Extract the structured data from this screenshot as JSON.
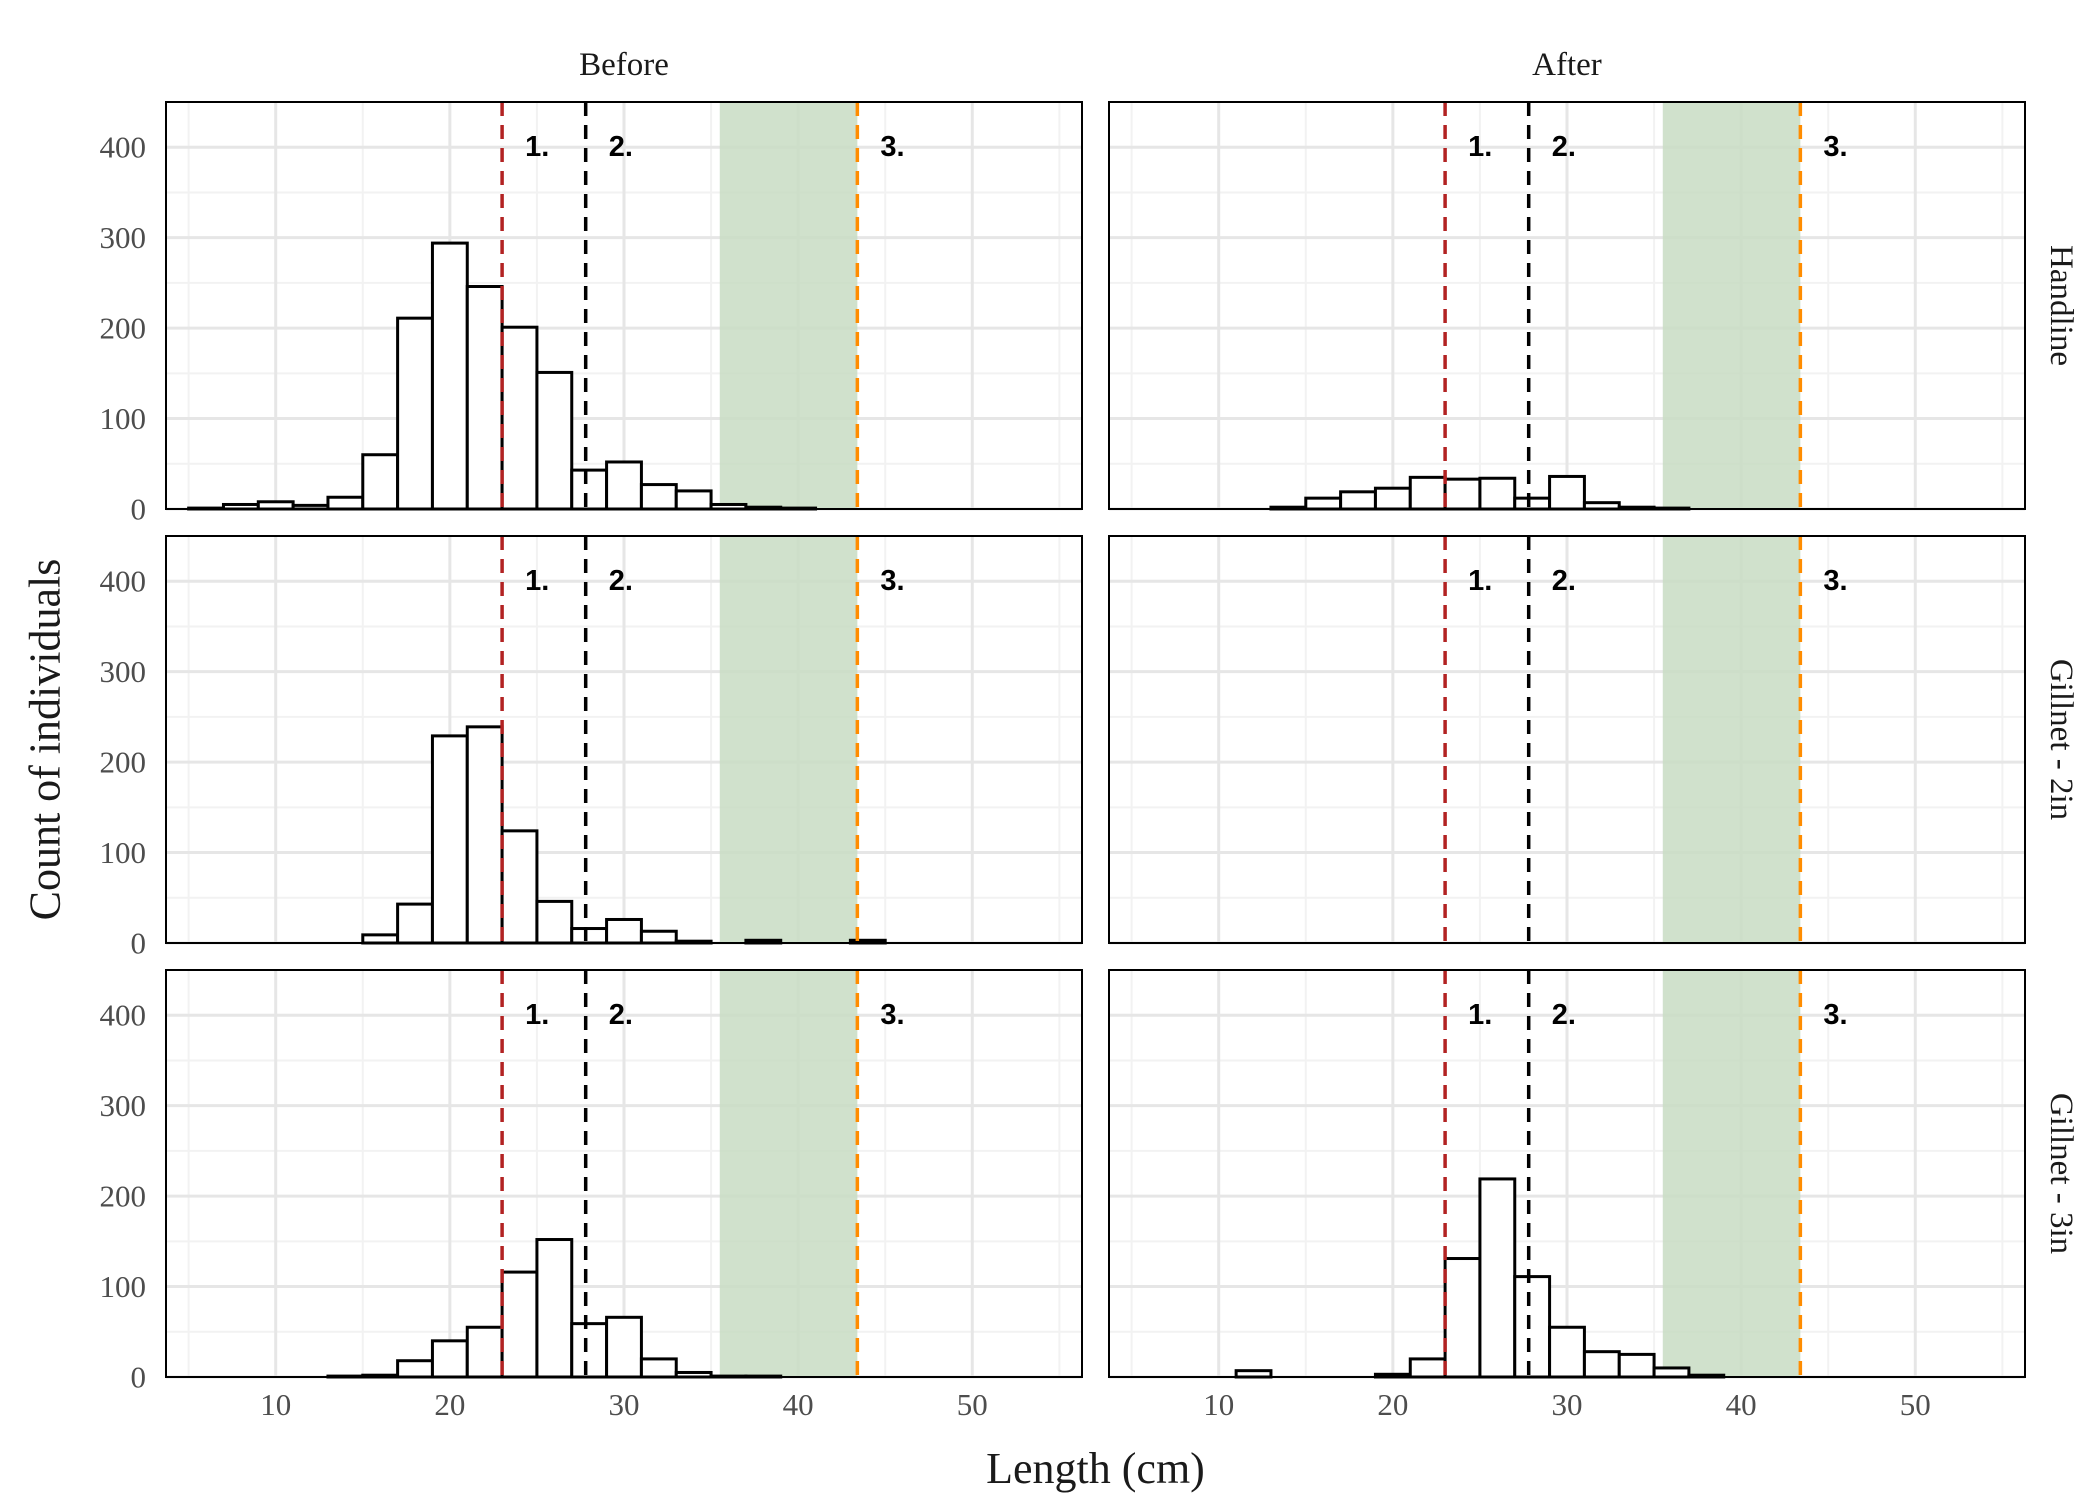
{
  "chart_data": {
    "type": "bar",
    "subtype": "faceted-histogram",
    "xlabel": "Length (cm)",
    "ylabel": "Count of individuals",
    "xlim": [
      3.7,
      56.3
    ],
    "ylim": [
      0,
      450
    ],
    "xticks": [
      10,
      20,
      30,
      40,
      50
    ],
    "yticks": [
      0,
      100,
      200,
      300,
      400
    ],
    "grid": true,
    "bin_width": 2,
    "columns": [
      "Before",
      "After"
    ],
    "rows": [
      "Handline",
      "Gillnet - 2in",
      "Gillnet - 3in"
    ],
    "reference_lines": [
      {
        "label": "1.",
        "x": 23,
        "color": "#b22222"
      },
      {
        "label": "2.",
        "x": 27.8,
        "color": "#000000"
      },
      {
        "label": "3.",
        "x": 43.4,
        "color": "#ff8c00"
      }
    ],
    "shaded_band": {
      "x_start": 35.5,
      "x_end": 43.4,
      "color": "#c8dcc3"
    },
    "annotation_y": 400,
    "panels": [
      {
        "row": "Handline",
        "col": "Before",
        "x": [
          6,
          8,
          10,
          12,
          14,
          16,
          18,
          20,
          22,
          24,
          26,
          28,
          30,
          32,
          34,
          36,
          38,
          40
        ],
        "values": [
          1,
          5,
          8,
          4,
          13,
          60,
          211,
          294,
          246,
          201,
          151,
          43,
          52,
          27,
          20,
          5,
          2,
          1
        ]
      },
      {
        "row": "Handline",
        "col": "After",
        "x": [
          14,
          16,
          18,
          20,
          22,
          24,
          26,
          28,
          30,
          32,
          34,
          36
        ],
        "values": [
          2,
          12,
          19,
          23,
          35,
          33,
          34,
          12,
          36,
          7,
          2,
          1
        ]
      },
      {
        "row": "Gillnet - 2in",
        "col": "Before",
        "x": [
          16,
          18,
          20,
          22,
          24,
          26,
          28,
          30,
          32,
          34,
          36,
          38,
          40,
          42,
          44,
          46
        ],
        "values": [
          9,
          43,
          229,
          239,
          124,
          46,
          16,
          26,
          13,
          2,
          0,
          3,
          0,
          0,
          3,
          0
        ]
      },
      {
        "row": "Gillnet - 2in",
        "col": "After",
        "x": [],
        "values": []
      },
      {
        "row": "Gillnet - 3in",
        "col": "Before",
        "x": [
          14,
          16,
          18,
          20,
          22,
          24,
          26,
          28,
          30,
          32,
          34,
          36,
          38,
          40
        ],
        "values": [
          1,
          2,
          18,
          40,
          55,
          116,
          152,
          59,
          66,
          20,
          5,
          1,
          1,
          0
        ]
      },
      {
        "row": "Gillnet - 3in",
        "col": "After",
        "x": [
          12,
          14,
          16,
          18,
          20,
          22,
          24,
          26,
          28,
          30,
          32,
          34,
          36,
          38,
          40
        ],
        "values": [
          7,
          0,
          0,
          0,
          3,
          20,
          131,
          219,
          111,
          55,
          28,
          25,
          10,
          2,
          0
        ]
      }
    ]
  }
}
